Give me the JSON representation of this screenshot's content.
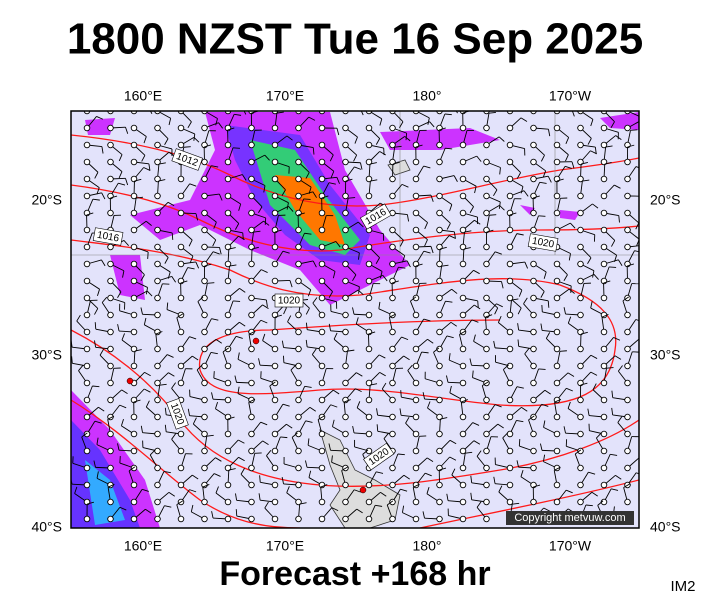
{
  "title": "1800 NZST Tue 16 Sep 2025",
  "top_labels": [
    "160°E",
    "170°E",
    "180°",
    "170°W"
  ],
  "bottom_labels": [
    "160°E",
    "170°E",
    "180°",
    "170°W"
  ],
  "left_labels": [
    "20°S",
    "30°S",
    "40°S"
  ],
  "right_labels": [
    "20°S",
    "30°S",
    "40°S"
  ],
  "isobar_labels": [
    "1012",
    "1016",
    "1016",
    "1020",
    "1020",
    "1020",
    "1020"
  ],
  "copyright": "Copyright metvuw.com",
  "footer": "Forecast +168 hr",
  "corner": "IM2"
}
